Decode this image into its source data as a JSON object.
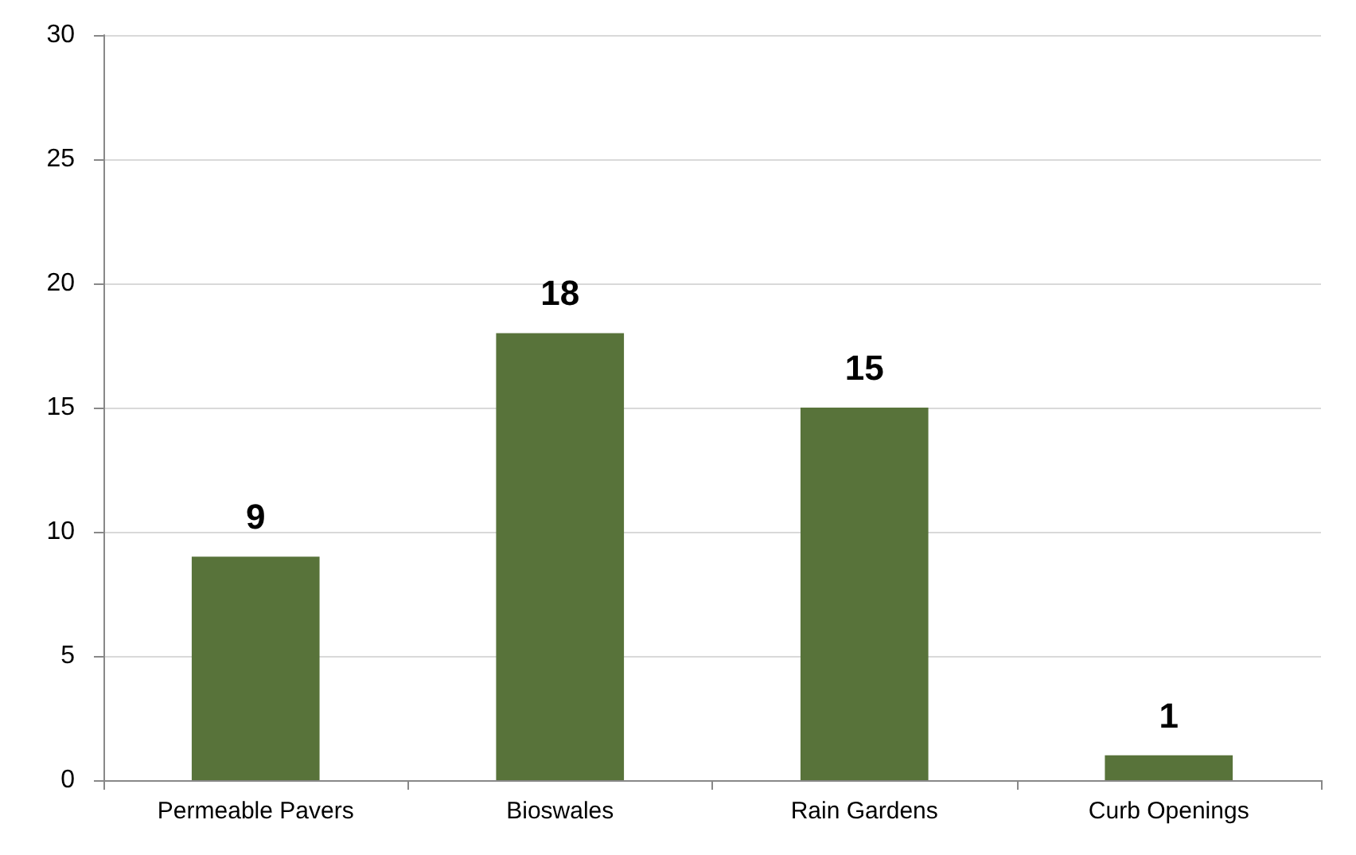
{
  "chart_data": {
    "type": "bar",
    "categories": [
      "Permeable Pavers",
      "Bioswales",
      "Rain Gardens",
      "Curb Openings"
    ],
    "values": [
      9,
      18,
      15,
      1
    ],
    "color": "#58733a",
    "ylim": [
      0,
      30
    ],
    "yticks": [
      0,
      5,
      10,
      15,
      20,
      25,
      30
    ],
    "grid": "y",
    "data_labels": true
  }
}
